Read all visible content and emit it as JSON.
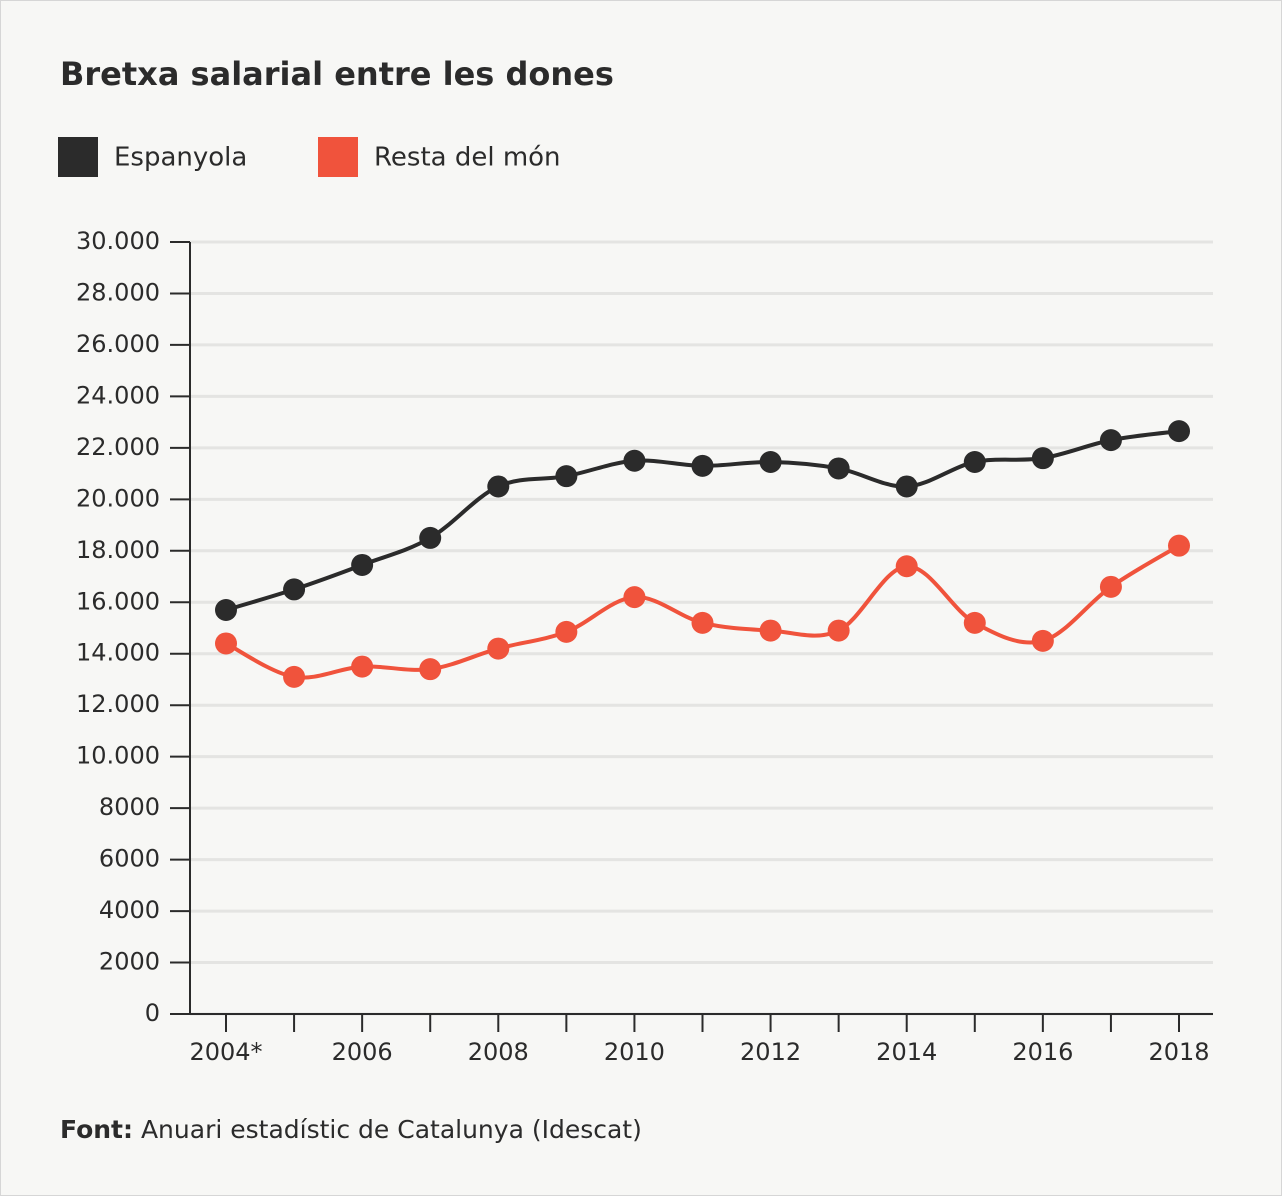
{
  "chart_data": {
    "type": "line",
    "title": "Bretxa salarial entre les dones",
    "categories": [
      "2004*",
      null,
      "2006",
      null,
      "2008",
      null,
      "2010",
      null,
      "2012",
      null,
      "2014",
      null,
      "2016",
      null,
      "2018"
    ],
    "series": [
      {
        "name": "Espanyola",
        "color": "#2b2b2b",
        "values": [
          15700,
          16500,
          17450,
          18500,
          20500,
          20900,
          21500,
          21300,
          21450,
          21200,
          20500,
          21450,
          21600,
          22300,
          22650
        ]
      },
      {
        "name": "Resta del món",
        "color": "#f0533c",
        "values": [
          14400,
          13100,
          13500,
          13400,
          14200,
          14850,
          16200,
          15200,
          14900,
          14900,
          17400,
          15200,
          14500,
          16600,
          18200
        ]
      }
    ],
    "ylim": [
      0,
      30000
    ],
    "yticks": [
      0,
      2000,
      4000,
      6000,
      8000,
      {
        "value": 10000,
        "label": "10.000"
      },
      {
        "value": 12000,
        "label": "12.000"
      },
      {
        "value": 14000,
        "label": "14.000"
      },
      {
        "value": 16000,
        "label": "16.000"
      },
      {
        "value": 18000,
        "label": "18.000"
      },
      {
        "value": 20000,
        "label": "20.000"
      },
      {
        "value": 22000,
        "label": "22.000"
      },
      {
        "value": 24000,
        "label": "24.000"
      },
      {
        "value": 26000,
        "label": "26.000"
      },
      {
        "value": 28000,
        "label": "28.000"
      },
      {
        "value": 30000,
        "label": "30.000"
      }
    ],
    "grid": true,
    "source_label": "Font:",
    "source_text": "Anuari estadístic de Catalunya (Idescat)"
  }
}
